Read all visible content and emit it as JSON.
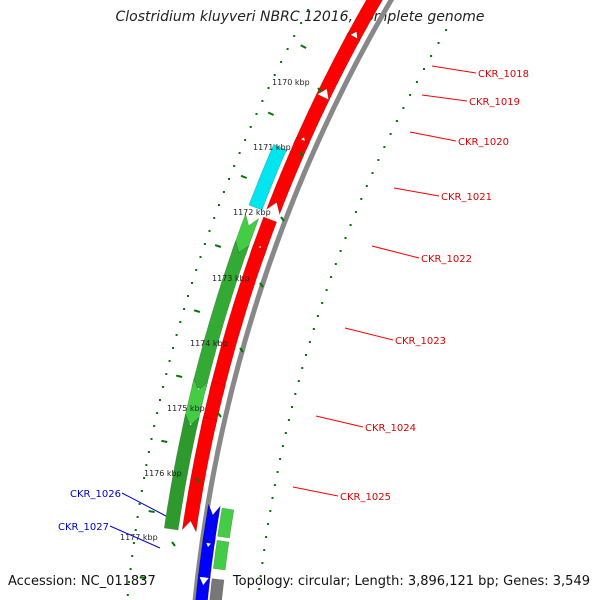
{
  "header": {
    "title": "Clostridium kluyveri NBRC 12016, complete genome"
  },
  "footer": {
    "accession": "Accession: NC_011837",
    "topology": "Topology: circular; Length: 3,896,121 bp; Genes: 3,549"
  },
  "colors": {
    "forward_gene": "#ff0000",
    "reverse_gene_green": "#44cc44",
    "reverse_gene_blue": "#0000ff",
    "special_gene": "#00e5ee",
    "backbone": "#888888",
    "ticks": "#007700",
    "label_red": "#dd0000",
    "label_blue": "#0000cc"
  },
  "scale_labels": [
    "1170 kbp",
    "1171 kbp",
    "1172 kbp",
    "1173 kbp",
    "1174 kbp",
    "1175 kbp",
    "1176 kbp",
    "1177 kbp"
  ],
  "genes": [
    {
      "label": "CKR_1018",
      "color": "red"
    },
    {
      "label": "CKR_1019",
      "color": "red"
    },
    {
      "label": "CKR_1020",
      "color": "red"
    },
    {
      "label": "CKR_1021",
      "color": "red"
    },
    {
      "label": "CKR_1022",
      "color": "red"
    },
    {
      "label": "CKR_1023",
      "color": "red"
    },
    {
      "label": "CKR_1024",
      "color": "red"
    },
    {
      "label": "CKR_1025",
      "color": "red"
    },
    {
      "label": "CKR_1026",
      "color": "blue"
    },
    {
      "label": "CKR_1027",
      "color": "blue"
    }
  ]
}
